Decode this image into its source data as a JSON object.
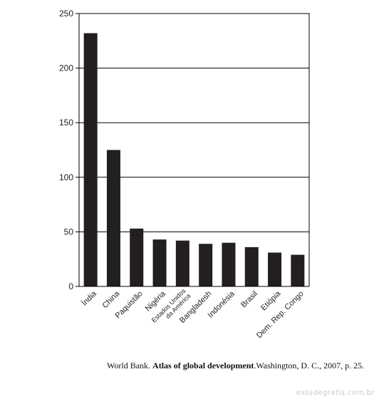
{
  "chart_data": {
    "type": "bar",
    "categories": [
      "Índia",
      "China",
      "Paquistão",
      "Nigéria",
      "Estados Unidos da América",
      "Bangladesh",
      "Indonésia",
      "Brasil",
      "Etiópia",
      "Dem. Rep. Congo"
    ],
    "category_lines": [
      [
        "Índia"
      ],
      [
        "China"
      ],
      [
        "Paquistão"
      ],
      [
        "Nigéria"
      ],
      [
        "Estados Unidos",
        "da América"
      ],
      [
        "Bangladesh"
      ],
      [
        "Indonésia"
      ],
      [
        "Brasil"
      ],
      [
        "Etiópia"
      ],
      [
        "Dem. Rep. Congo"
      ]
    ],
    "values": [
      232,
      125,
      53,
      43,
      42,
      39,
      40,
      36,
      31,
      29
    ],
    "ylim": [
      0,
      250
    ],
    "yticks": [
      0,
      50,
      100,
      150,
      200,
      250
    ],
    "grid": true,
    "bar_color": "#231f20"
  },
  "source": {
    "prefix": "World Bank. ",
    "title": "Atlas of global development",
    "suffix": ".Washington, D. C., 2007, p. 25."
  },
  "watermark": "estudegratis.com.br"
}
